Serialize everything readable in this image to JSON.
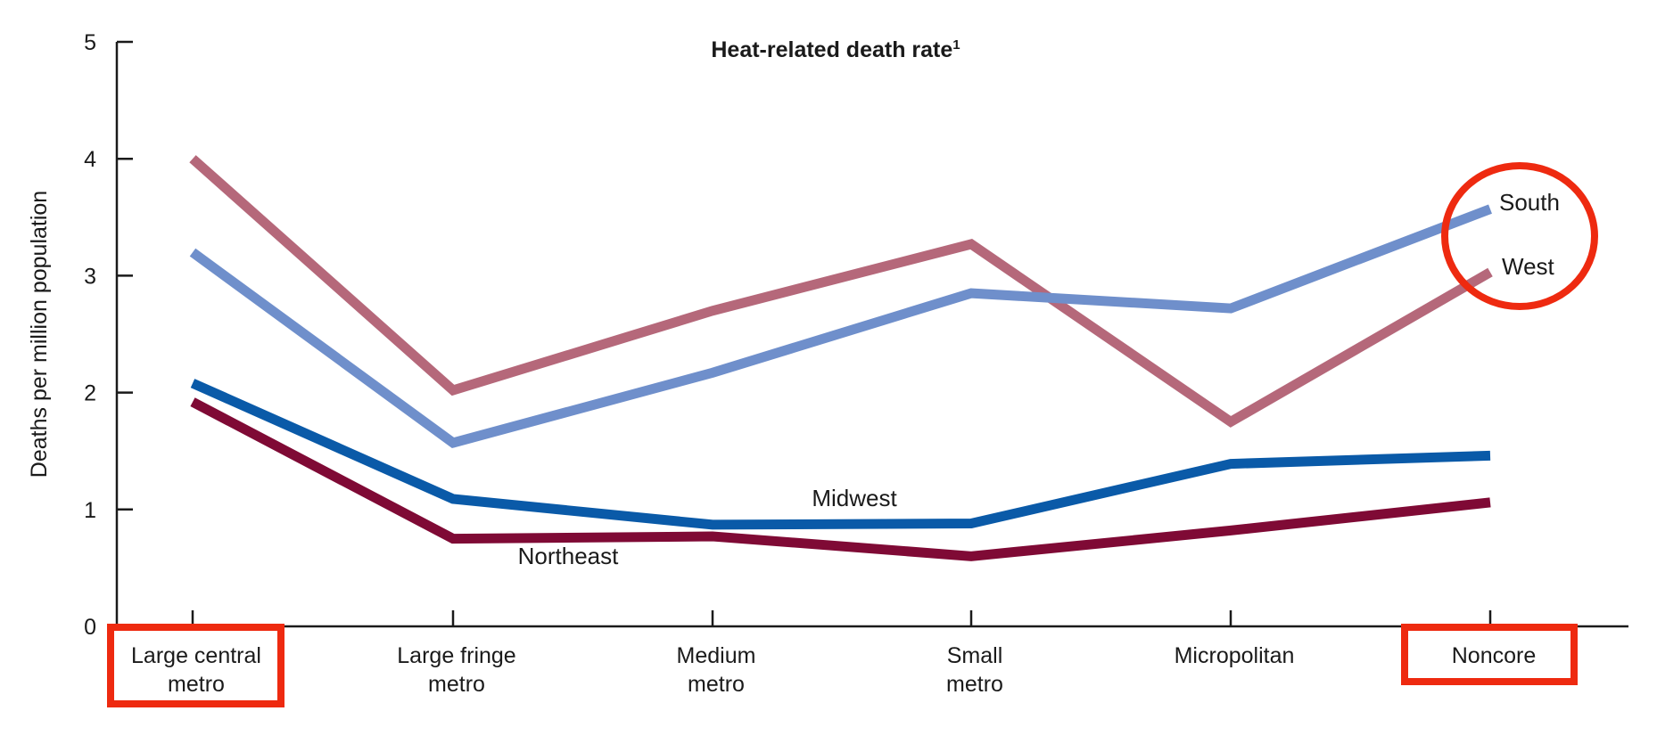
{
  "chart_data": {
    "type": "line",
    "title": "Heat-related death rate",
    "title_superscript": "1",
    "xlabel": "",
    "ylabel": "Deaths per million population",
    "ylim": [
      0,
      5
    ],
    "yticks": [
      "0",
      "1",
      "2",
      "3",
      "4",
      "5"
    ],
    "categories": [
      [
        "Large central",
        "metro"
      ],
      [
        "Large fringe",
        "metro"
      ],
      [
        "Medium",
        "metro"
      ],
      [
        "Small",
        "metro"
      ],
      [
        "Micropolitan"
      ],
      [
        "Noncore"
      ]
    ],
    "series": [
      {
        "name": "West",
        "color": "#b5687a",
        "values": [
          4.0,
          2.02,
          2.7,
          3.27,
          1.75,
          3.03
        ]
      },
      {
        "name": "South",
        "color": "#6f8fcb",
        "values": [
          3.2,
          1.57,
          2.17,
          2.85,
          2.72,
          3.57
        ]
      },
      {
        "name": "Midwest",
        "color": "#0a5aa8",
        "values": [
          2.08,
          1.09,
          0.87,
          0.88,
          1.39,
          1.46
        ]
      },
      {
        "name": "Northeast",
        "color": "#7f0a35",
        "values": [
          1.92,
          0.75,
          0.77,
          0.6,
          0.82,
          1.06
        ]
      }
    ],
    "grid": false,
    "annotations": {
      "highlight_color": "#ee2a10",
      "boxed_categories": [
        0,
        5
      ],
      "circled_series": [
        "South",
        "West"
      ]
    }
  }
}
